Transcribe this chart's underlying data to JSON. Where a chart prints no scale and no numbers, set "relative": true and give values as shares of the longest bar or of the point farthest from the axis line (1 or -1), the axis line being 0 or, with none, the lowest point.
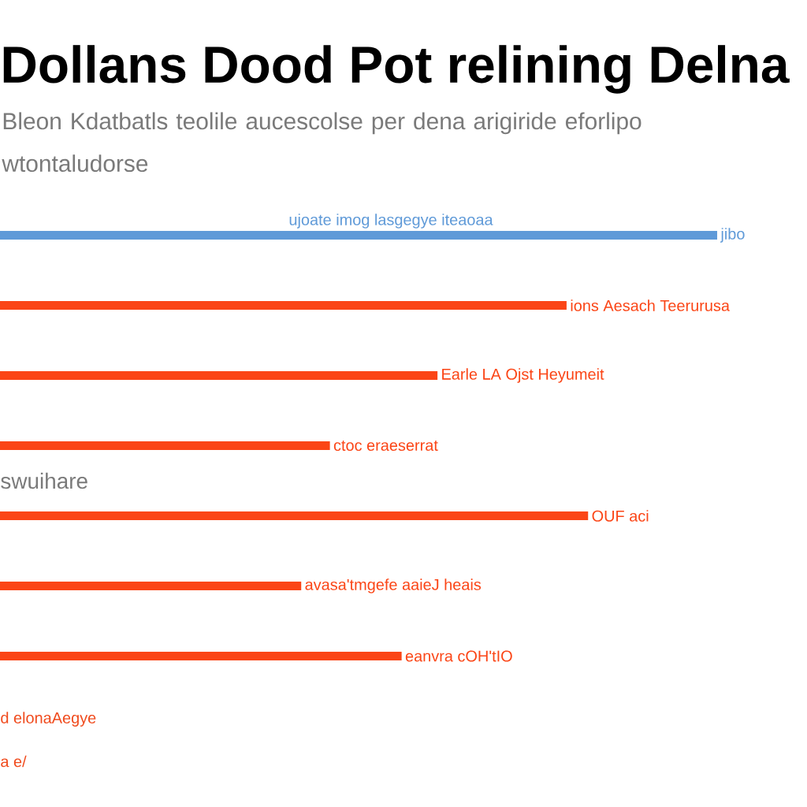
{
  "chart_data": {
    "type": "bar",
    "orientation": "horizontal",
    "relative": true,
    "title": "Dollans Dood Pot relining Delna",
    "subtitle": "Bleon Kdatbatls teolile aucescolse per dena arigiride eforlipo wtontaludorse",
    "categories": [
      null,
      null,
      null,
      null,
      null,
      null,
      null
    ],
    "values": [
      1,
      0.79,
      0.61,
      0.46,
      0.82,
      0.42,
      0.56
    ],
    "colors": [
      "#5f9ad8",
      "#fb4516",
      "#fb4516",
      "#fb4516",
      "#fb4516",
      "#fb4516",
      "#fb4516"
    ],
    "annotations": [
      "ujoate imog lasgegye iteaoaa",
      "jibo",
      "ions Aesach Teerurusa",
      "Earle LA Ojst Heyumeit",
      "ctoc eraeserrat",
      "swuihare",
      "OUF aci",
      "avasa'tmgefe aaieJ heais",
      "eanvra cOH'tIO",
      "d elonaAegye",
      "a e/"
    ]
  }
}
